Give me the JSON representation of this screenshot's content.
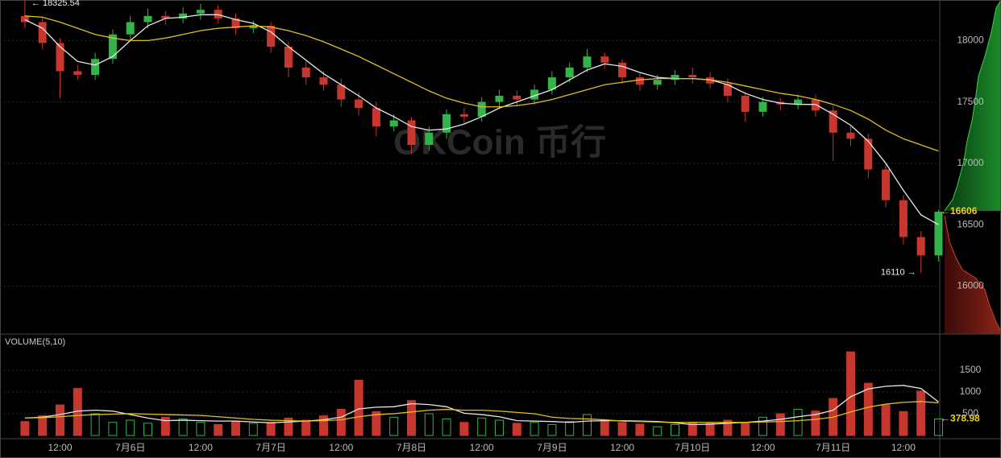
{
  "chart_data": {
    "type": "candlestick",
    "watermark": "OKCoin 币行",
    "volume_title": "VOLUME(5,10)",
    "categories": [
      null,
      null,
      "12:00",
      null,
      null,
      null,
      "7月6日",
      null,
      null,
      null,
      "12:00",
      null,
      null,
      null,
      "7月7日",
      null,
      null,
      null,
      "12:00",
      null,
      null,
      null,
      "7月8日",
      null,
      null,
      null,
      "12:00",
      null,
      null,
      null,
      "7月9日",
      null,
      null,
      null,
      "12:00",
      null,
      null,
      null,
      "7月10日",
      null,
      null,
      null,
      "12:00",
      null,
      null,
      null,
      "7月11日",
      null,
      null,
      null,
      "12:00",
      null,
      null
    ],
    "opens": [
      18200,
      18150,
      17980,
      17750,
      17720,
      17850,
      18050,
      18150,
      18200,
      18180,
      18220,
      18250,
      18180,
      18100,
      18120,
      17950,
      17780,
      17700,
      17640,
      17520,
      17450,
      17300,
      17350,
      17150,
      17250,
      17400,
      17380,
      17500,
      17550,
      17520,
      17600,
      17700,
      17780,
      17870,
      17820,
      17700,
      17640,
      17680,
      17720,
      17700,
      17650,
      17550,
      17420,
      17500,
      17480,
      17520,
      17430,
      17250,
      17200,
      16950,
      16700,
      16400,
      16250
    ],
    "highs": [
      18325.54,
      18190,
      18020,
      17800,
      17900,
      18090,
      18200,
      18260,
      18240,
      18270,
      18300,
      18290,
      18220,
      18160,
      18150,
      17990,
      17830,
      17750,
      17690,
      17580,
      17500,
      17400,
      17380,
      17300,
      17440,
      17450,
      17540,
      17600,
      17590,
      17640,
      17750,
      17820,
      17930,
      17900,
      17850,
      17740,
      17720,
      17760,
      17780,
      17740,
      17690,
      17580,
      17540,
      17530,
      17560,
      17560,
      17470,
      17300,
      17240,
      17000,
      16740,
      16450,
      16620
    ],
    "lows": [
      18100,
      17930,
      17530,
      17680,
      17680,
      17810,
      18000,
      18100,
      18130,
      18140,
      18170,
      18140,
      18050,
      18060,
      17900,
      17700,
      17640,
      17590,
      17460,
      17390,
      17220,
      17260,
      17080,
      17100,
      17200,
      17320,
      17340,
      17450,
      17470,
      17480,
      17560,
      17660,
      17740,
      17770,
      17650,
      17590,
      17600,
      17640,
      17650,
      17610,
      17500,
      17340,
      17380,
      17430,
      17440,
      17380,
      17020,
      17140,
      16880,
      16640,
      16340,
      16110,
      16200
    ],
    "closes": [
      18150,
      17980,
      17750,
      17720,
      17850,
      18050,
      18150,
      18200,
      18180,
      18220,
      18250,
      18180,
      18100,
      18120,
      17950,
      17780,
      17700,
      17640,
      17520,
      17450,
      17300,
      17350,
      17150,
      17250,
      17400,
      17380,
      17500,
      17550,
      17520,
      17600,
      17700,
      17780,
      17870,
      17820,
      17700,
      17640,
      17680,
      17720,
      17700,
      17650,
      17550,
      17420,
      17500,
      17480,
      17520,
      17430,
      17250,
      17200,
      16950,
      16700,
      16400,
      16250,
      16606
    ],
    "ma_series": [
      {
        "color": "#e8e8e8",
        "values": [
          18170,
          18100,
          17950,
          17830,
          17800,
          17870,
          18000,
          18120,
          18180,
          18190,
          18210,
          18210,
          18170,
          18140,
          18070,
          17950,
          17840,
          17730,
          17640,
          17550,
          17450,
          17380,
          17300,
          17270,
          17280,
          17320,
          17380,
          17450,
          17500,
          17550,
          17600,
          17680,
          17760,
          17810,
          17790,
          17740,
          17700,
          17690,
          17690,
          17680,
          17640,
          17570,
          17520,
          17490,
          17480,
          17480,
          17400,
          17310,
          17180,
          17000,
          16780,
          16580,
          16500
        ]
      },
      {
        "color": "#e0c020",
        "values": [
          18200,
          18190,
          18150,
          18100,
          18050,
          18020,
          18000,
          18000,
          18020,
          18050,
          18080,
          18100,
          18110,
          18120,
          18110,
          18080,
          18040,
          17990,
          17930,
          17870,
          17800,
          17730,
          17660,
          17590,
          17530,
          17490,
          17460,
          17460,
          17470,
          17490,
          17520,
          17560,
          17600,
          17640,
          17660,
          17680,
          17690,
          17690,
          17690,
          17680,
          17660,
          17630,
          17600,
          17570,
          17550,
          17520,
          17480,
          17430,
          17360,
          17270,
          17200,
          17150,
          17100
        ]
      }
    ],
    "up_color": "#34b34a",
    "down_color": "#c8372d",
    "ylim": [
      15610,
      18330
    ],
    "yticks": [
      16000,
      16500,
      17000,
      17500,
      18000
    ],
    "annotations": [
      {
        "index": 0,
        "value": 18325.54,
        "label": "← 18325.54",
        "side": "right"
      },
      {
        "index": 51,
        "value": 16110,
        "label": "16110 →",
        "side": "left"
      }
    ],
    "last_price": {
      "value": 16606,
      "label": "←16606"
    },
    "volumes": [
      320,
      450,
      700,
      1080,
      500,
      300,
      350,
      280,
      420,
      380,
      300,
      250,
      330,
      280,
      300,
      400,
      350,
      450,
      600,
      1270,
      550,
      420,
      800,
      500,
      380,
      300,
      400,
      350,
      280,
      300,
      250,
      320,
      480,
      350,
      300,
      260,
      200,
      250,
      300,
      280,
      350,
      300,
      420,
      500,
      600,
      560,
      850,
      1920,
      1200,
      700,
      550,
      1020,
      378.98
    ],
    "volume_ma_series": [
      {
        "color": "#e8e8e8",
        "values": [
          400,
          420,
          480,
          560,
          580,
          560,
          480,
          400,
          340,
          350,
          340,
          330,
          330,
          310,
          290,
          310,
          330,
          360,
          420,
          610,
          650,
          660,
          730,
          710,
          660,
          510,
          480,
          430,
          340,
          330,
          320,
          300,
          330,
          340,
          340,
          330,
          320,
          290,
          250,
          260,
          280,
          300,
          330,
          370,
          430,
          480,
          580,
          890,
          1070,
          1130,
          1150,
          1080,
          770
        ]
      },
      {
        "color": "#e0c020",
        "values": [
          400,
          410,
          430,
          460,
          480,
          490,
          500,
          490,
          480,
          470,
          460,
          430,
          400,
          370,
          350,
          340,
          330,
          340,
          360,
          430,
          480,
          500,
          540,
          580,
          600,
          580,
          580,
          560,
          530,
          500,
          420,
          390,
          380,
          360,
          330,
          320,
          310,
          300,
          300,
          300,
          300,
          300,
          310,
          320,
          340,
          370,
          420,
          540,
          650,
          720,
          760,
          780,
          750
        ]
      }
    ],
    "volume_ylim": [
      0,
      2330
    ],
    "volume_yticks": [
      500,
      1000,
      1500
    ],
    "last_volume": {
      "value": 378.98,
      "label": "←378.98"
    },
    "grid": true
  }
}
